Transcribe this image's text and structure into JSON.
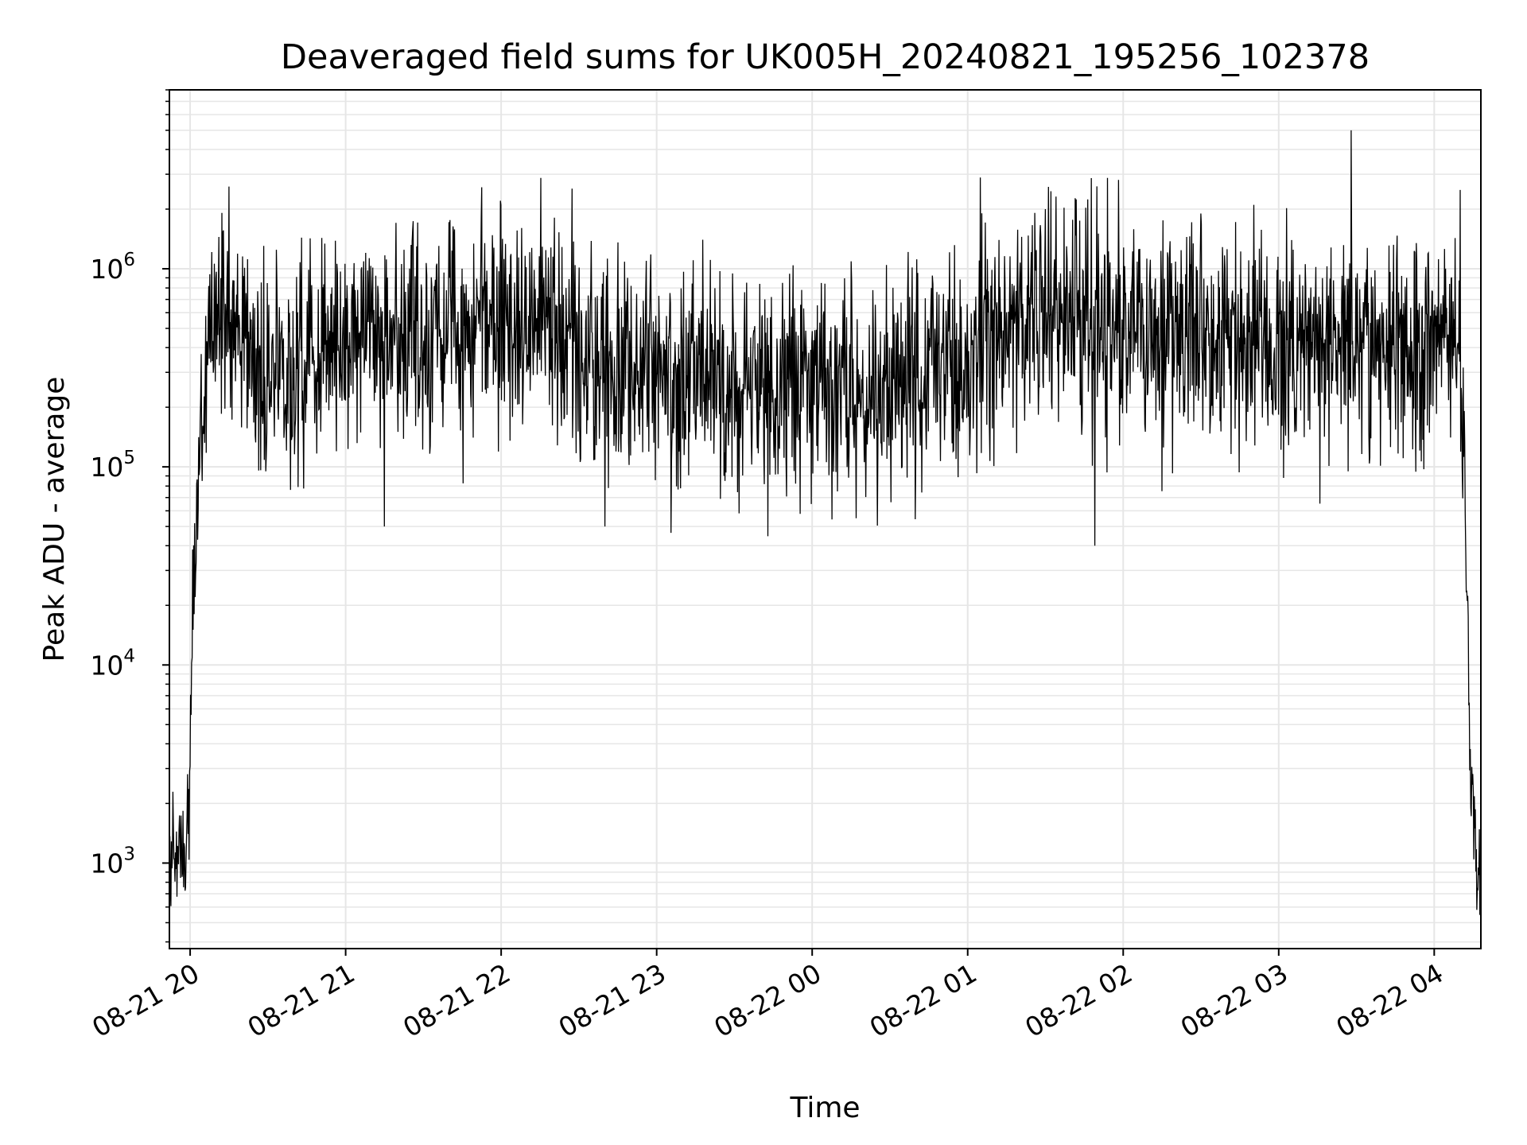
{
  "chart_data": {
    "type": "line",
    "title": "Deaveraged field sums for UK005H_20240821_195256_102378",
    "xlabel": "Time",
    "ylabel": "Peak ADU - average",
    "y_scale": "log",
    "ylim": [
      370,
      8000000
    ],
    "xlim": [
      "2024-08-21 19:52",
      "2024-08-22 04:18"
    ],
    "grid": true,
    "grid_minor": true,
    "line_color": "#000000",
    "grid_color": "#e6e6e6",
    "x_ticks": [
      {
        "time": "2024-08-21 20:00",
        "label": "08-21 20"
      },
      {
        "time": "2024-08-21 21:00",
        "label": "08-21 21"
      },
      {
        "time": "2024-08-21 22:00",
        "label": "08-21 22"
      },
      {
        "time": "2024-08-21 23:00",
        "label": "08-21 23"
      },
      {
        "time": "2024-08-22 00:00",
        "label": "08-22 00"
      },
      {
        "time": "2024-08-22 01:00",
        "label": "08-22 01"
      },
      {
        "time": "2024-08-22 02:00",
        "label": "08-22 02"
      },
      {
        "time": "2024-08-22 03:00",
        "label": "08-22 03"
      },
      {
        "time": "2024-08-22 04:00",
        "label": "08-22 04"
      }
    ],
    "y_ticks": [
      {
        "value": 1000,
        "base": "10",
        "exp": "3"
      },
      {
        "value": 10000,
        "base": "10",
        "exp": "4"
      },
      {
        "value": 100000,
        "base": "10",
        "exp": "5"
      },
      {
        "value": 1000000,
        "base": "10",
        "exp": "6"
      }
    ],
    "series": [
      {
        "x": [
          "2024-08-21 19:52",
          "2024-08-21 19:55",
          "2024-08-21 19:58",
          "2024-08-21 20:00",
          "2024-08-21 20:01",
          "2024-08-21 20:02",
          "2024-08-21 20:04",
          "2024-08-21 20:06",
          "2024-08-21 20:08",
          "2024-08-21 20:10",
          "2024-08-21 20:15",
          "2024-08-21 20:20",
          "2024-08-21 20:25",
          "2024-08-21 20:30",
          "2024-08-21 20:40",
          "2024-08-21 20:50",
          "2024-08-21 21:00",
          "2024-08-21 21:15",
          "2024-08-21 21:30",
          "2024-08-21 21:40",
          "2024-08-21 22:00",
          "2024-08-21 22:15",
          "2024-08-21 22:30",
          "2024-08-21 22:45",
          "2024-08-21 23:00",
          "2024-08-21 23:15",
          "2024-08-21 23:30",
          "2024-08-21 23:45",
          "2024-08-22 00:00",
          "2024-08-22 00:15",
          "2024-08-22 00:30",
          "2024-08-22 00:45",
          "2024-08-22 01:00",
          "2024-08-22 01:15",
          "2024-08-22 01:30",
          "2024-08-22 01:45",
          "2024-08-22 02:00",
          "2024-08-22 02:15",
          "2024-08-22 02:30",
          "2024-08-22 02:45",
          "2024-08-22 03:00",
          "2024-08-22 03:15",
          "2024-08-22 03:30",
          "2024-08-22 03:45",
          "2024-08-22 04:00",
          "2024-08-22 04:05",
          "2024-08-22 04:08",
          "2024-08-22 04:10",
          "2024-08-22 04:12",
          "2024-08-22 04:14",
          "2024-08-22 04:16",
          "2024-08-22 04:18"
        ],
        "y": [
          1000,
          1100,
          1200,
          2500,
          20000,
          60000,
          120000,
          300000,
          600000,
          700000,
          500000,
          450000,
          350000,
          250000,
          300000,
          450000,
          400000,
          450000,
          400000,
          500000,
          550000,
          500000,
          400000,
          350000,
          300000,
          280000,
          250000,
          260000,
          250000,
          240000,
          270000,
          320000,
          380000,
          500000,
          600000,
          550000,
          500000,
          450000,
          500000,
          420000,
          400000,
          420000,
          450000,
          400000,
          420000,
          500000,
          600000,
          400000,
          60000,
          3000,
          1000,
          900
        ],
        "spikes": [
          {
            "time": "2024-08-21 20:15",
            "value": 2600000
          },
          {
            "time": "2024-08-21 22:00",
            "value": 2100000
          },
          {
            "time": "2024-08-22 01:30",
            "value": 2000000
          },
          {
            "time": "2024-08-22 02:30",
            "value": 1900000
          },
          {
            "time": "2024-08-22 03:28",
            "value": 5000000
          },
          {
            "time": "2024-08-22 04:10",
            "value": 2500000
          },
          {
            "time": "2024-08-21 21:15",
            "value": 50000
          },
          {
            "time": "2024-08-22 01:49",
            "value": 40000
          },
          {
            "time": "2024-08-21 22:40",
            "value": 50000
          }
        ]
      }
    ]
  }
}
